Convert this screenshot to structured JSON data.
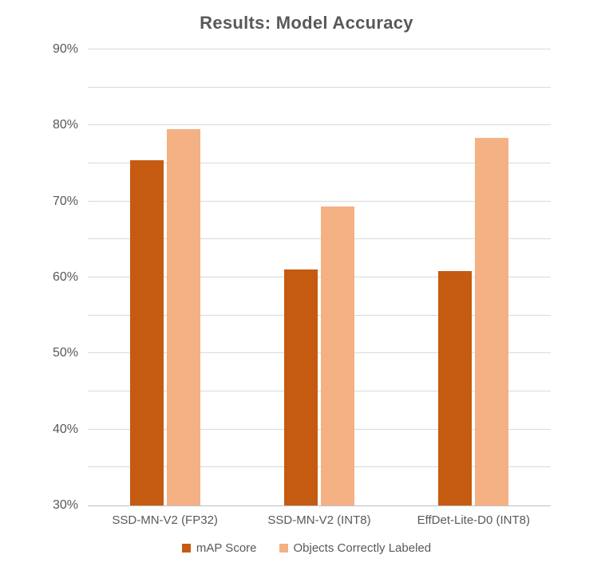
{
  "chart_data": {
    "type": "bar",
    "title": "Results: Model Accuracy",
    "categories": [
      "SSD-MN-V2 (FP32)",
      "SSD-MN-V2 (INT8)",
      "EffDet-Lite-D0 (INT8)"
    ],
    "series": [
      {
        "name": "mAP Score",
        "color": "#C55A11",
        "values": [
          75.4,
          61.0,
          60.8
        ]
      },
      {
        "name": "Objects Correctly Labeled",
        "color": "#F4B183",
        "values": [
          79.5,
          69.3,
          78.4
        ]
      }
    ],
    "ylim": [
      30,
      90
    ],
    "y_tick_step": 10,
    "y_grid_step": 5,
    "y_tick_suffix": "%",
    "grid": true,
    "legend_position": "bottom"
  },
  "colors": {
    "title": "#595959",
    "axis_text": "#595959",
    "gridline": "#D9D9D9",
    "axis_line": "#BFBFBF",
    "background": "#FFFFFF"
  }
}
